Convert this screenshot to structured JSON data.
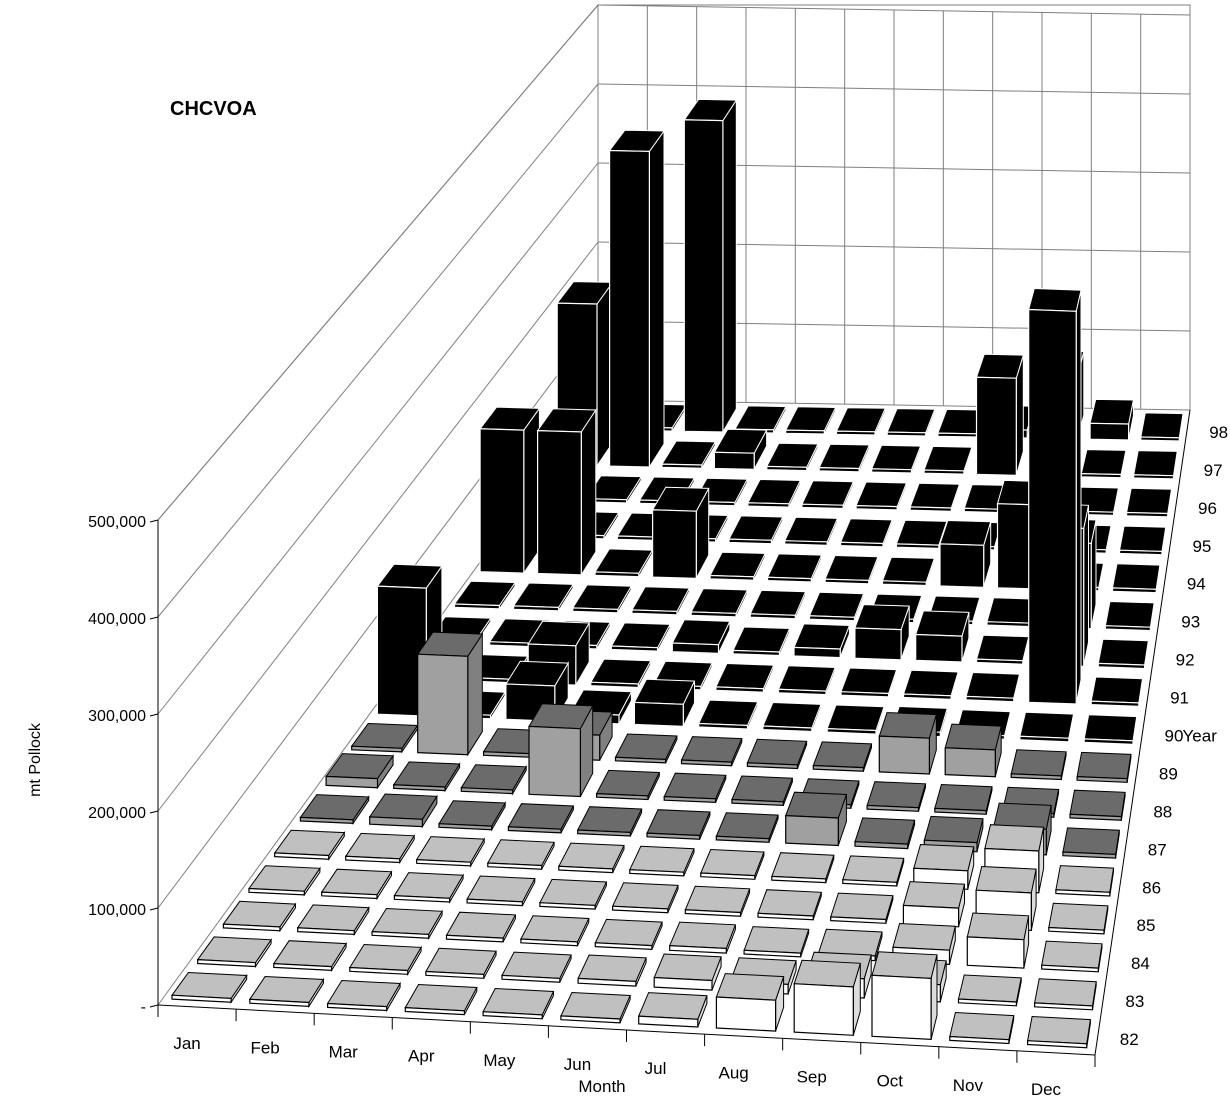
{
  "chart_data": {
    "type": "bar",
    "variant": "3d-bar",
    "title": "CHCVOA",
    "xlabel": "Month",
    "ylabel": "mt Pollock",
    "zlabel": "Year",
    "categories": [
      "Jan",
      "Feb",
      "Mar",
      "Apr",
      "May",
      "Jun",
      "Jul",
      "Aug",
      "Sep",
      "Oct",
      "Nov",
      "Dec"
    ],
    "ylim": [
      0,
      500000
    ],
    "yticks": [
      "-",
      "100,000",
      "200,000",
      "300,000",
      "400,000",
      "500,000"
    ],
    "grid": true,
    "series_colors": {
      "82-86": "#ffffff",
      "87-89": "#a0a0a0",
      "90-98": "#000000"
    },
    "series": [
      {
        "name": "82",
        "values": [
          0,
          0,
          0,
          0,
          0,
          2000,
          8000,
          32000,
          50000,
          63000,
          2000,
          1000
        ]
      },
      {
        "name": "83",
        "values": [
          0,
          0,
          0,
          3000,
          0,
          5000,
          10000,
          10000,
          20000,
          18000,
          3000,
          0
        ]
      },
      {
        "name": "84",
        "values": [
          0,
          0,
          0,
          0,
          0,
          3000,
          5000,
          4000,
          5000,
          15000,
          30000,
          1000
        ]
      },
      {
        "name": "85",
        "values": [
          0,
          0,
          0,
          0,
          0,
          0,
          0,
          2000,
          1000,
          20000,
          40000,
          1000
        ]
      },
      {
        "name": "86",
        "values": [
          0,
          0,
          0,
          0,
          0,
          0,
          0,
          1000,
          2000,
          20000,
          45000,
          0
        ]
      },
      {
        "name": "87",
        "values": [
          0,
          8000,
          0,
          0,
          0,
          0,
          0,
          30000,
          5000,
          10000,
          28000,
          0
        ]
      },
      {
        "name": "88",
        "values": [
          10000,
          0,
          0,
          75000,
          0,
          0,
          0,
          0,
          0,
          0,
          0,
          0
        ]
      },
      {
        "name": "89",
        "values": [
          0,
          110000,
          0,
          28000,
          0,
          0,
          0,
          0,
          40000,
          30000,
          0,
          0
        ]
      },
      {
        "name": "90",
        "values": [
          145000,
          0,
          40000,
          10000,
          25000,
          0,
          0,
          0,
          5000,
          0,
          0,
          0
        ]
      },
      {
        "name": "91",
        "values": [
          0,
          0,
          45000,
          0,
          0,
          0,
          0,
          0,
          0,
          0,
          450000,
          0
        ]
      },
      {
        "name": "92",
        "values": [
          0,
          0,
          0,
          0,
          10000,
          0,
          10000,
          35000,
          30000,
          0,
          160000,
          0
        ]
      },
      {
        "name": "93",
        "values": [
          0,
          0,
          0,
          0,
          0,
          0,
          0,
          0,
          0,
          0,
          100000,
          0
        ]
      },
      {
        "name": "94",
        "values": [
          170000,
          170000,
          0,
          80000,
          0,
          0,
          0,
          0,
          50000,
          100000,
          0,
          0
        ]
      },
      {
        "name": "95",
        "values": [
          0,
          0,
          0,
          0,
          0,
          0,
          0,
          0,
          0,
          0,
          0,
          0
        ]
      },
      {
        "name": "96",
        "values": [
          0,
          0,
          0,
          0,
          0,
          0,
          0,
          0,
          0,
          0,
          0,
          0
        ]
      },
      {
        "name": "97",
        "values": [
          200000,
          390000,
          0,
          20000,
          0,
          0,
          0,
          0,
          120000,
          200000,
          0,
          0
        ]
      },
      {
        "name": "98",
        "values": [
          0,
          0,
          390000,
          0,
          0,
          0,
          0,
          0,
          10000,
          80000,
          20000,
          0
        ]
      }
    ]
  }
}
